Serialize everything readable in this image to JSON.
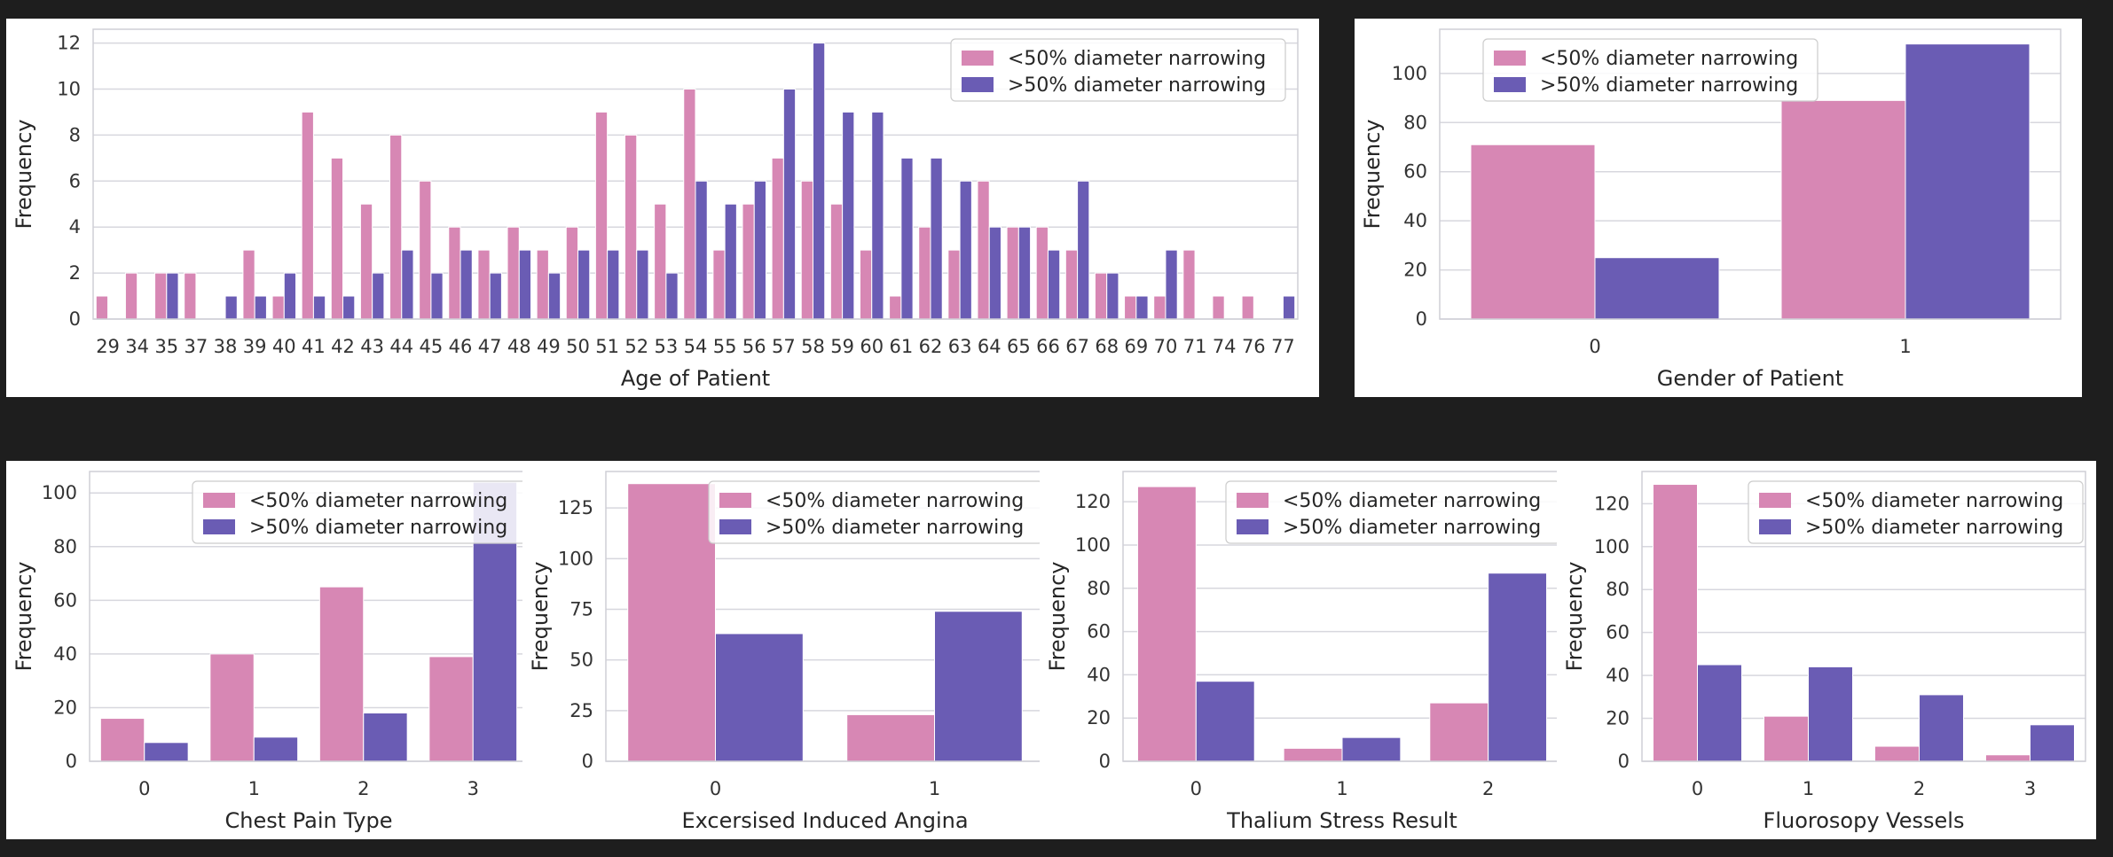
{
  "colors": {
    "low": "#d787b4",
    "high": "#6a5cb4"
  },
  "legend": [
    "<50% diameter narrowing",
    ">50% diameter narrowing"
  ],
  "chart_data": [
    {
      "type": "bar",
      "xlabel": "Age of Patient",
      "ylabel": "Frequency",
      "ylim": [
        0,
        12.6
      ],
      "yticks": [
        0,
        2,
        4,
        6,
        8,
        10,
        12
      ],
      "legend_position": "top-right",
      "categories": [
        "29",
        "34",
        "35",
        "37",
        "38",
        "39",
        "40",
        "41",
        "42",
        "43",
        "44",
        "45",
        "46",
        "47",
        "48",
        "49",
        "50",
        "51",
        "52",
        "53",
        "54",
        "55",
        "56",
        "57",
        "58",
        "59",
        "60",
        "61",
        "62",
        "63",
        "64",
        "65",
        "66",
        "67",
        "68",
        "69",
        "70",
        "71",
        "74",
        "76",
        "77"
      ],
      "series": [
        {
          "name": "<50% diameter narrowing",
          "values": [
            1,
            2,
            2,
            2,
            0,
            3,
            1,
            9,
            7,
            5,
            8,
            6,
            4,
            3,
            4,
            3,
            4,
            9,
            8,
            5,
            10,
            3,
            5,
            7,
            6,
            5,
            3,
            1,
            4,
            3,
            6,
            4,
            4,
            3,
            2,
            1,
            1,
            3,
            1,
            1,
            0
          ]
        },
        {
          "name": ">50% diameter narrowing",
          "values": [
            0,
            0,
            2,
            0,
            1,
            1,
            2,
            1,
            1,
            2,
            3,
            2,
            3,
            2,
            3,
            2,
            3,
            3,
            3,
            2,
            6,
            5,
            6,
            10,
            12,
            9,
            9,
            7,
            7,
            6,
            4,
            4,
            3,
            6,
            2,
            1,
            3,
            0,
            0,
            0,
            1
          ]
        }
      ]
    },
    {
      "type": "bar",
      "xlabel": "Gender of Patient",
      "ylabel": "Frequency",
      "ylim": [
        0,
        118
      ],
      "yticks": [
        0,
        20,
        40,
        60,
        80,
        100
      ],
      "legend_position": "top-left",
      "categories": [
        "0",
        "1"
      ],
      "series": [
        {
          "name": "<50% diameter narrowing",
          "values": [
            71,
            89
          ]
        },
        {
          "name": ">50% diameter narrowing",
          "values": [
            25,
            112
          ]
        }
      ]
    },
    {
      "type": "bar",
      "xlabel": "Chest Pain Type",
      "ylabel": "Frequency",
      "ylim": [
        0,
        108
      ],
      "yticks": [
        0,
        20,
        40,
        60,
        80,
        100
      ],
      "legend_position": "top-right",
      "categories": [
        "0",
        "1",
        "2",
        "3"
      ],
      "series": [
        {
          "name": "<50% diameter narrowing",
          "values": [
            16,
            40,
            65,
            39
          ]
        },
        {
          "name": ">50% diameter narrowing",
          "values": [
            7,
            9,
            18,
            104
          ]
        }
      ]
    },
    {
      "type": "bar",
      "xlabel": "Excersised Induced Angina",
      "ylabel": "Frequency",
      "ylim": [
        0,
        143
      ],
      "yticks": [
        0,
        25,
        50,
        75,
        100,
        125
      ],
      "legend_position": "top-right",
      "categories": [
        "0",
        "1"
      ],
      "series": [
        {
          "name": "<50% diameter narrowing",
          "values": [
            137,
            23
          ]
        },
        {
          "name": ">50% diameter narrowing",
          "values": [
            63,
            74
          ]
        }
      ]
    },
    {
      "type": "bar",
      "xlabel": "Thalium Stress Result",
      "ylabel": "Frequency",
      "ylim": [
        0,
        134
      ],
      "yticks": [
        0,
        20,
        40,
        60,
        80,
        100,
        120
      ],
      "legend_position": "top-right",
      "categories": [
        "0",
        "1",
        "2"
      ],
      "series": [
        {
          "name": "<50% diameter narrowing",
          "values": [
            127,
            6,
            27
          ]
        },
        {
          "name": ">50% diameter narrowing",
          "values": [
            37,
            11,
            87
          ]
        }
      ]
    },
    {
      "type": "bar",
      "xlabel": "Fluorosopy Vessels",
      "ylabel": "Frequency",
      "ylim": [
        0,
        135
      ],
      "yticks": [
        0,
        20,
        40,
        60,
        80,
        100,
        120
      ],
      "legend_position": "top-right",
      "categories": [
        "0",
        "1",
        "2",
        "3"
      ],
      "series": [
        {
          "name": "<50% diameter narrowing",
          "values": [
            129,
            21,
            7,
            3
          ]
        },
        {
          "name": ">50% diameter narrowing",
          "values": [
            45,
            44,
            31,
            17
          ]
        }
      ]
    }
  ]
}
